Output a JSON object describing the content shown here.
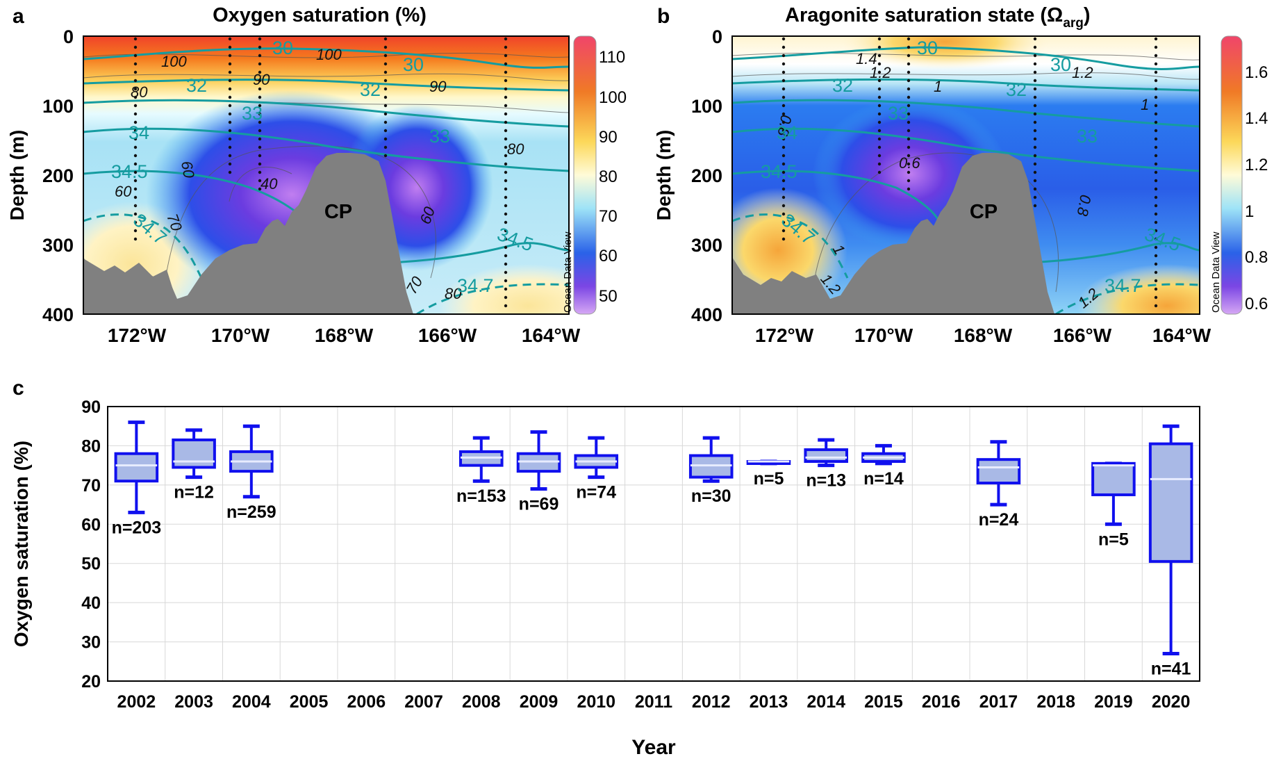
{
  "panels": {
    "a": {
      "letter": "a",
      "title": "Oxygen saturation (%)",
      "ylabel": "Depth (m)",
      "yticks": [
        "0",
        "100",
        "200",
        "300",
        "400"
      ],
      "xticks": [
        "172°W",
        "170°W",
        "168°W",
        "166°W",
        "164°W"
      ],
      "colorbar_ticks": [
        "110",
        "100",
        "90",
        "80",
        "70",
        "60",
        "50"
      ],
      "colorbar_caption": "Ocean Data View",
      "feature_label": "CP",
      "contour_labels": [
        "100",
        "100",
        "90",
        "90",
        "80",
        "80",
        "60",
        "40",
        "70",
        "60",
        "60",
        "70",
        "80",
        "80"
      ],
      "salinity_labels": [
        "30",
        "30",
        "32",
        "32",
        "33",
        "33",
        "34",
        "34.5",
        "34.7",
        "34.5",
        "34.7"
      ]
    },
    "b": {
      "letter": "b",
      "title_main": "Aragonite saturation state (Ω",
      "title_sub": "arg",
      "title_end": ")",
      "ylabel": "Depth (m)",
      "yticks": [
        "0",
        "100",
        "200",
        "300",
        "400"
      ],
      "xticks": [
        "172°W",
        "170°W",
        "168°W",
        "166°W",
        "164°W"
      ],
      "colorbar_ticks": [
        "1.6",
        "1.4",
        "1.2",
        "1",
        "0.8",
        "0.6"
      ],
      "colorbar_caption": "Ocean Data View",
      "feature_label": "CP",
      "contour_labels": [
        "1.4",
        "1.2",
        "1",
        "1.2",
        "1",
        "0.8",
        "0.6",
        "0.8",
        "1",
        "1.2",
        "1.2"
      ],
      "salinity_labels": [
        "30",
        "30",
        "32",
        "32",
        "33",
        "33",
        "34",
        "34.5",
        "34.7",
        "34.5",
        "34.7"
      ]
    },
    "c": {
      "letter": "c"
    }
  },
  "chart_data": {
    "type": "box",
    "title": "",
    "xlabel": "Year",
    "ylabel": "Oxygen saturation (%)",
    "ylim": [
      20,
      90
    ],
    "yticks": [
      20,
      30,
      40,
      50,
      60,
      70,
      80,
      90
    ],
    "categories": [
      "2002",
      "2003",
      "2004",
      "2005",
      "2006",
      "2007",
      "2008",
      "2009",
      "2010",
      "2011",
      "2012",
      "2013",
      "2014",
      "2015",
      "2016",
      "2017",
      "2018",
      "2019",
      "2020"
    ],
    "boxes": [
      {
        "year": "2002",
        "min": 63,
        "q1": 71,
        "median": 75,
        "q3": 78,
        "max": 86,
        "n_label": "n=203"
      },
      {
        "year": "2003",
        "min": 72,
        "q1": 74.5,
        "median": 76,
        "q3": 81.5,
        "max": 84,
        "n_label": "n=12"
      },
      {
        "year": "2004",
        "min": 67,
        "q1": 73.5,
        "median": 76,
        "q3": 78.5,
        "max": 85,
        "n_label": "n=259"
      },
      {
        "year": "2008",
        "min": 71,
        "q1": 75,
        "median": 77,
        "q3": 78.5,
        "max": 82,
        "n_label": "n=153"
      },
      {
        "year": "2009",
        "min": 69,
        "q1": 73.5,
        "median": 76,
        "q3": 78,
        "max": 83.5,
        "n_label": "n=69"
      },
      {
        "year": "2010",
        "min": 72,
        "q1": 74.5,
        "median": 76,
        "q3": 77.5,
        "max": 82,
        "n_label": "n=74"
      },
      {
        "year": "2012",
        "min": 71,
        "q1": 72,
        "median": 75,
        "q3": 77.5,
        "max": 82,
        "n_label": "n=30"
      },
      {
        "year": "2013",
        "min": 75.5,
        "q1": 75.5,
        "median": 76,
        "q3": 76,
        "max": 76,
        "n_label": "n=5"
      },
      {
        "year": "2014",
        "min": 75,
        "q1": 76,
        "median": 77,
        "q3": 79,
        "max": 81.5,
        "n_label": "n=13"
      },
      {
        "year": "2015",
        "min": 75.5,
        "q1": 76,
        "median": 77,
        "q3": 78,
        "max": 80,
        "n_label": "n=14"
      },
      {
        "year": "2017",
        "min": 65,
        "q1": 70.5,
        "median": 74.5,
        "q3": 76.5,
        "max": 81,
        "n_label": "n=24"
      },
      {
        "year": "2019",
        "min": 60,
        "q1": 67.5,
        "median": 75,
        "q3": 75.5,
        "max": 75.5,
        "n_label": "n=5"
      },
      {
        "year": "2020",
        "min": 27,
        "q1": 50.5,
        "median": 71.5,
        "q3": 80.5,
        "max": 85,
        "n_label": "n=41"
      }
    ],
    "colors": {
      "box_stroke": "#1010ee",
      "box_fill": "#a9b9e6",
      "grid": "#d8d8d8"
    }
  }
}
